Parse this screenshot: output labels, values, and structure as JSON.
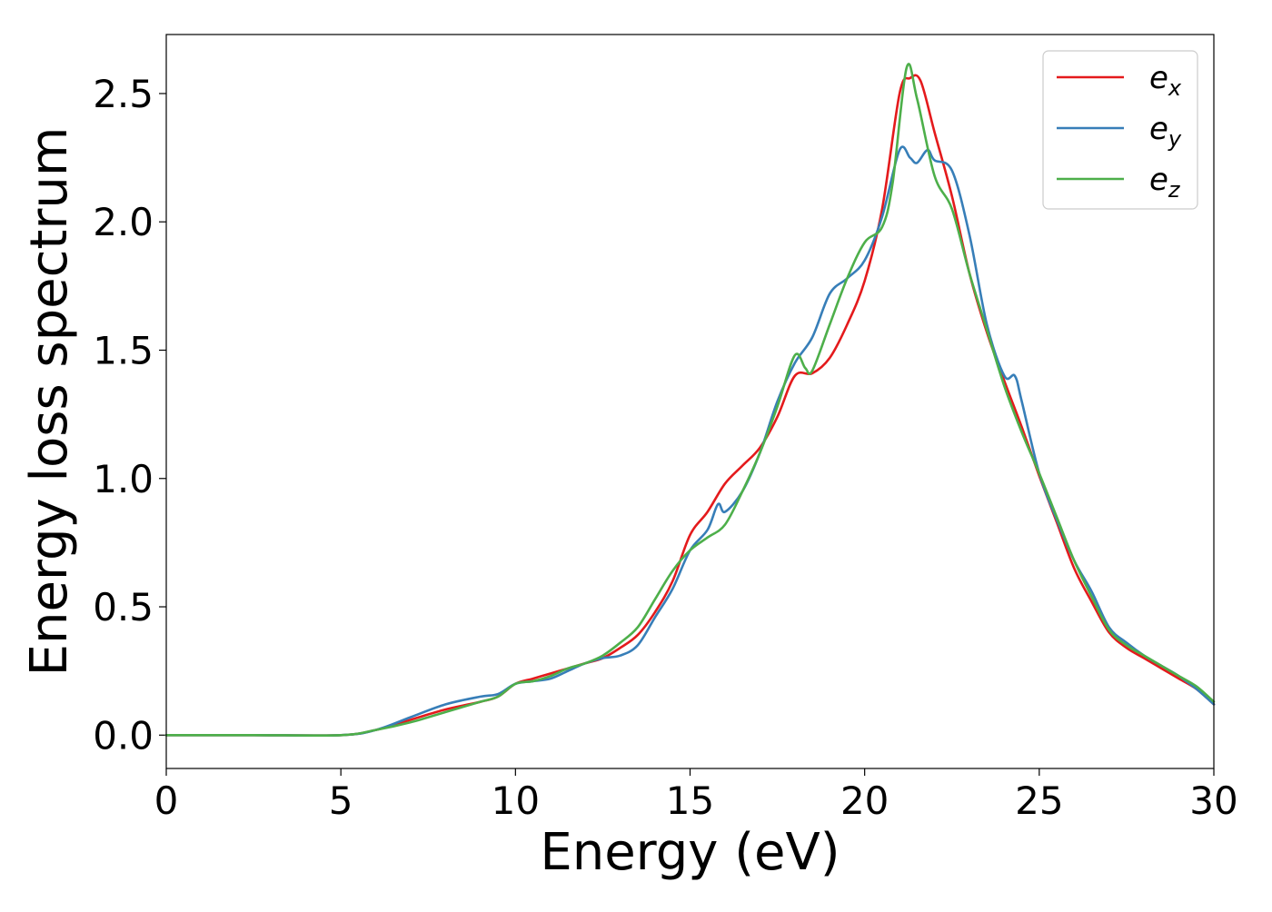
{
  "chart_data": {
    "type": "line",
    "title": "",
    "xlabel": "Energy (eV)",
    "ylabel": "Energy loss spectrum",
    "xlim": [
      0,
      30
    ],
    "ylim": [
      -0.13,
      2.73
    ],
    "xticks": [
      0,
      5,
      10,
      15,
      20,
      25,
      30
    ],
    "xtick_labels": [
      "0",
      "5",
      "10",
      "15",
      "20",
      "25",
      "30"
    ],
    "yticks": [
      0.0,
      0.5,
      1.0,
      1.5,
      2.0,
      2.5
    ],
    "ytick_labels": [
      "0.0",
      "0.5",
      "1.0",
      "1.5",
      "2.0",
      "2.5"
    ],
    "grid": false,
    "legend_position": "top-right",
    "series": [
      {
        "name": "e_x",
        "label_base": "e",
        "label_sub": "x",
        "color": "#e41a1c",
        "x": [
          0,
          2.5,
          5,
          6,
          7,
          8,
          9,
          9.5,
          10,
          10.5,
          11,
          11.5,
          12,
          12.5,
          13,
          13.5,
          14,
          14.5,
          15,
          15.5,
          16,
          16.5,
          17,
          17.5,
          18,
          18.5,
          19,
          19.5,
          20,
          20.5,
          21,
          21.3,
          21.6,
          22,
          22.5,
          23,
          23.5,
          24,
          24.5,
          25,
          25.5,
          26,
          26.5,
          27,
          27.5,
          28,
          28.5,
          29,
          29.5,
          30
        ],
        "y": [
          0.0,
          0.0,
          0.0,
          0.02,
          0.06,
          0.1,
          0.13,
          0.15,
          0.2,
          0.22,
          0.24,
          0.26,
          0.28,
          0.3,
          0.34,
          0.39,
          0.48,
          0.6,
          0.78,
          0.87,
          0.98,
          1.05,
          1.12,
          1.24,
          1.4,
          1.41,
          1.47,
          1.6,
          1.77,
          2.05,
          2.5,
          2.56,
          2.55,
          2.35,
          2.1,
          1.8,
          1.57,
          1.38,
          1.2,
          1.01,
          0.83,
          0.65,
          0.52,
          0.4,
          0.34,
          0.3,
          0.26,
          0.22,
          0.18,
          0.12
        ]
      },
      {
        "name": "e_y",
        "label_base": "e",
        "label_sub": "y",
        "color": "#377eb8",
        "x": [
          0,
          2.5,
          5,
          6,
          7,
          8,
          9,
          9.5,
          10,
          10.5,
          11,
          11.5,
          12,
          12.5,
          13,
          13.5,
          14,
          14.5,
          15,
          15.5,
          15.8,
          16,
          16.5,
          17,
          17.5,
          18,
          18.5,
          19,
          19.5,
          20,
          20.5,
          21,
          21.3,
          21.5,
          21.8,
          22,
          22.5,
          23,
          23.5,
          24,
          24.3,
          24.5,
          25,
          25.5,
          26,
          26.5,
          27,
          27.5,
          28,
          28.5,
          29,
          29.5,
          30
        ],
        "y": [
          0.0,
          0.0,
          0.0,
          0.02,
          0.07,
          0.12,
          0.15,
          0.16,
          0.2,
          0.21,
          0.22,
          0.25,
          0.28,
          0.3,
          0.31,
          0.35,
          0.46,
          0.57,
          0.72,
          0.8,
          0.9,
          0.87,
          0.95,
          1.1,
          1.3,
          1.45,
          1.55,
          1.72,
          1.78,
          1.85,
          2.02,
          2.28,
          2.25,
          2.23,
          2.28,
          2.24,
          2.2,
          1.95,
          1.6,
          1.4,
          1.4,
          1.3,
          1.02,
          0.84,
          0.68,
          0.56,
          0.42,
          0.36,
          0.31,
          0.27,
          0.23,
          0.18,
          0.12
        ]
      },
      {
        "name": "e_z",
        "label_base": "e",
        "label_sub": "z",
        "color": "#4daf4a",
        "x": [
          0,
          2.5,
          5,
          6,
          7,
          8,
          9,
          9.5,
          10,
          10.5,
          11,
          11.5,
          12,
          12.5,
          13,
          13.5,
          14,
          14.5,
          15,
          15.5,
          16,
          16.5,
          17,
          17.5,
          18,
          18.3,
          18.5,
          19,
          19.5,
          20,
          20.5,
          20.8,
          21.2,
          21.5,
          22,
          22.5,
          23,
          23.5,
          24,
          24.5,
          25,
          25.5,
          26,
          26.5,
          27,
          27.5,
          28,
          28.5,
          29,
          29.5,
          30
        ],
        "y": [
          0.0,
          0.0,
          0.0,
          0.02,
          0.05,
          0.09,
          0.13,
          0.15,
          0.2,
          0.21,
          0.23,
          0.26,
          0.28,
          0.31,
          0.36,
          0.42,
          0.53,
          0.64,
          0.72,
          0.77,
          0.82,
          0.95,
          1.1,
          1.28,
          1.48,
          1.43,
          1.42,
          1.6,
          1.78,
          1.92,
          1.98,
          2.15,
          2.6,
          2.48,
          2.18,
          2.05,
          1.8,
          1.58,
          1.36,
          1.18,
          1.02,
          0.85,
          0.68,
          0.54,
          0.41,
          0.35,
          0.31,
          0.27,
          0.23,
          0.19,
          0.13
        ]
      }
    ]
  }
}
